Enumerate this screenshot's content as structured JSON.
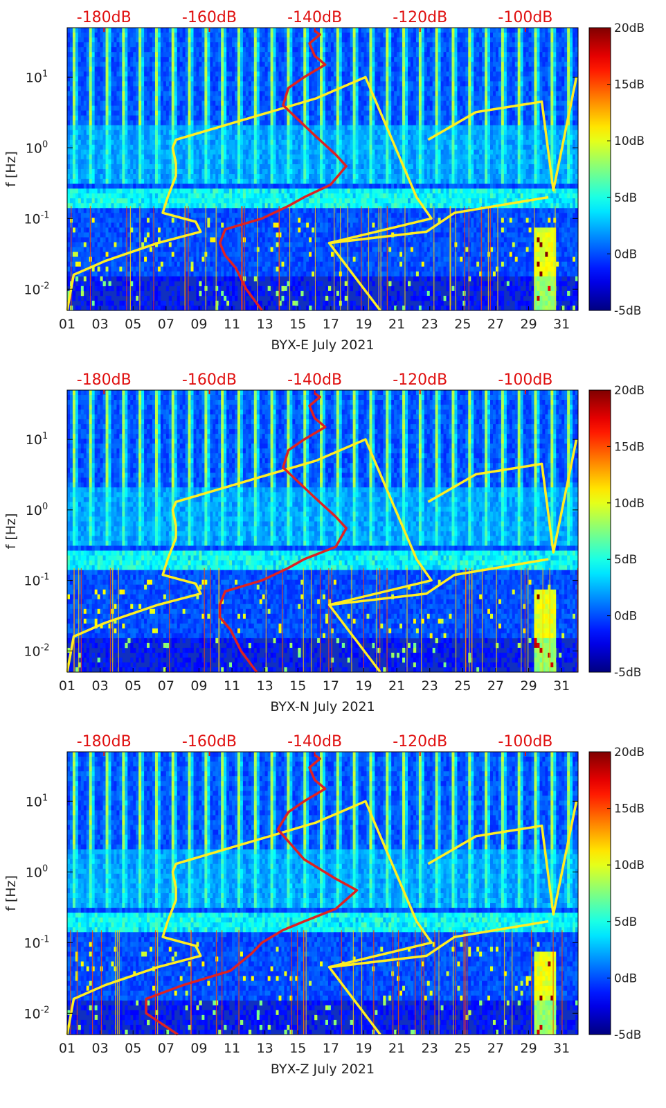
{
  "chart_data": [
    {
      "type": "heatmap",
      "xlabel": "BYX-E July 2021",
      "ylabel": "f [Hz]",
      "xticks": [
        "01",
        "03",
        "05",
        "07",
        "09",
        "11",
        "13",
        "15",
        "17",
        "19",
        "21",
        "23",
        "25",
        "27",
        "29",
        "31"
      ],
      "xlim": [
        1,
        32
      ],
      "yscale": "log",
      "ylim": [
        0.005,
        50
      ],
      "yticks": [
        "10^-2",
        "10^-1",
        "10^0",
        "10^1"
      ],
      "top_axis_ticks": [
        "-180dB",
        "-160dB",
        "-140dB",
        "-120dB",
        "-100dB"
      ],
      "top_axis_range_db": [
        -187,
        -90
      ],
      "colorbar": {
        "ticks": [
          "-5dB",
          "0dB",
          "5dB",
          "10dB",
          "15dB",
          "20dB"
        ],
        "range": [
          -5,
          20
        ],
        "colormap": "jet"
      },
      "daily_pattern": "diurnal high-frequency bursts each day",
      "yellow_curve": {
        "x": [
          1.0,
          1.4,
          3.3,
          6.5,
          9.1,
          8.8,
          6.8,
          7.1,
          7.6,
          7.6,
          7.4,
          7.6,
          16.1,
          19.1,
          22.2,
          23.1,
          16.9,
          20.0
        ],
        "y": [
          0.005,
          0.016,
          0.025,
          0.045,
          0.065,
          0.09,
          0.12,
          0.2,
          0.4,
          0.6,
          1.0,
          1.3,
          5.0,
          10.0,
          0.2,
          0.1,
          0.045,
          0.005
        ],
        "x2": [
          22.9,
          25.8,
          29.8,
          30.5,
          31.9
        ],
        "y2": [
          1.3,
          3.2,
          4.5,
          0.25,
          10.0
        ],
        "x3": [
          16.9,
          22.8,
          24.5,
          30.2
        ],
        "y3": [
          0.045,
          0.065,
          0.12,
          0.2
        ]
      },
      "red_curve": {
        "db": [
          -150,
          -153,
          -155,
          -157,
          -158,
          -157,
          -150,
          -145,
          -142,
          -137,
          -134,
          -136,
          -140,
          -146,
          -145,
          -142,
          -138,
          -140,
          -141,
          -139,
          -140
        ],
        "f": [
          0.005,
          0.01,
          0.02,
          0.03,
          0.045,
          0.07,
          0.1,
          0.15,
          0.2,
          0.3,
          0.55,
          0.8,
          1.5,
          4.0,
          7.0,
          10.0,
          15.0,
          20.0,
          30.0,
          40.0,
          45.0
        ]
      }
    },
    {
      "type": "heatmap",
      "xlabel": "BYX-N July 2021",
      "ylabel": "f [Hz]",
      "xticks": [
        "01",
        "03",
        "05",
        "07",
        "09",
        "11",
        "13",
        "15",
        "17",
        "19",
        "21",
        "23",
        "25",
        "27",
        "29",
        "31"
      ],
      "xlim": [
        1,
        32
      ],
      "yscale": "log",
      "ylim": [
        0.005,
        50
      ],
      "yticks": [
        "10^-2",
        "10^-1",
        "10^0",
        "10^1"
      ],
      "top_axis_ticks": [
        "-180dB",
        "-160dB",
        "-140dB",
        "-120dB",
        "-100dB"
      ],
      "top_axis_range_db": [
        -187,
        -90
      ],
      "colorbar": {
        "ticks": [
          "-5dB",
          "0dB",
          "5dB",
          "10dB",
          "15dB",
          "20dB"
        ],
        "range": [
          -5,
          20
        ],
        "colormap": "jet"
      },
      "daily_pattern": "diurnal high-frequency bursts each day",
      "yellow_curve": {
        "x": [
          1.0,
          1.4,
          3.3,
          6.5,
          9.1,
          8.8,
          6.8,
          7.1,
          7.6,
          7.6,
          7.4,
          7.6,
          16.1,
          19.1,
          22.2,
          23.1,
          16.9,
          20.0
        ],
        "y": [
          0.005,
          0.016,
          0.025,
          0.045,
          0.065,
          0.09,
          0.12,
          0.2,
          0.4,
          0.6,
          1.0,
          1.3,
          5.0,
          10.0,
          0.2,
          0.1,
          0.045,
          0.005
        ],
        "x2": [
          22.9,
          25.8,
          29.8,
          30.5,
          31.9
        ],
        "y2": [
          1.3,
          3.2,
          4.5,
          0.25,
          10.0
        ],
        "x3": [
          16.9,
          22.8,
          24.5,
          30.2
        ],
        "y3": [
          0.045,
          0.065,
          0.12,
          0.2
        ]
      },
      "red_curve": {
        "db": [
          -151,
          -154,
          -156,
          -158,
          -158,
          -157,
          -150,
          -145,
          -142,
          -136,
          -134,
          -136,
          -140,
          -146,
          -145,
          -142,
          -138,
          -140,
          -141,
          -139,
          -140
        ],
        "f": [
          0.005,
          0.01,
          0.02,
          0.03,
          0.045,
          0.07,
          0.1,
          0.15,
          0.2,
          0.3,
          0.55,
          0.8,
          1.5,
          4.0,
          7.0,
          10.0,
          15.0,
          20.0,
          30.0,
          40.0,
          45.0
        ]
      }
    },
    {
      "type": "heatmap",
      "xlabel": "BYX-Z July 2021",
      "ylabel": "f [Hz]",
      "xticks": [
        "01",
        "03",
        "05",
        "07",
        "09",
        "11",
        "13",
        "15",
        "17",
        "19",
        "21",
        "23",
        "25",
        "27",
        "29",
        "31"
      ],
      "xlim": [
        1,
        32
      ],
      "yscale": "log",
      "ylim": [
        0.005,
        50
      ],
      "yticks": [
        "10^-2",
        "10^-1",
        "10^0",
        "10^1"
      ],
      "top_axis_ticks": [
        "-180dB",
        "-160dB",
        "-140dB",
        "-120dB",
        "-100dB"
      ],
      "top_axis_range_db": [
        -187,
        -90
      ],
      "colorbar": {
        "ticks": [
          "-5dB",
          "0dB",
          "5dB",
          "10dB",
          "15dB",
          "20dB"
        ],
        "range": [
          -5,
          20
        ],
        "colormap": "jet"
      },
      "daily_pattern": "diurnal high-frequency bursts each day",
      "yellow_curve": {
        "x": [
          1.0,
          1.4,
          3.3,
          6.5,
          9.1,
          8.8,
          6.8,
          7.1,
          7.6,
          7.6,
          7.4,
          7.6,
          16.1,
          19.1,
          22.2,
          23.1,
          16.9,
          20.0
        ],
        "y": [
          0.005,
          0.016,
          0.025,
          0.045,
          0.065,
          0.09,
          0.12,
          0.2,
          0.4,
          0.6,
          1.0,
          1.3,
          5.0,
          10.0,
          0.2,
          0.1,
          0.045,
          0.005
        ],
        "x2": [
          22.9,
          25.8,
          29.8,
          30.5,
          31.9
        ],
        "y2": [
          1.3,
          3.2,
          4.5,
          0.25,
          10.0
        ],
        "x3": [
          16.9,
          22.8,
          24.5,
          30.2
        ],
        "y3": [
          0.045,
          0.065,
          0.12,
          0.2
        ]
      },
      "red_curve": {
        "db": [
          -166,
          -172,
          -172,
          -165,
          -156,
          -152,
          -150,
          -146,
          -142,
          -136,
          -132,
          -136,
          -142,
          -147,
          -145,
          -142,
          -138,
          -140,
          -141,
          -139,
          -140
        ],
        "f": [
          0.005,
          0.01,
          0.016,
          0.025,
          0.04,
          0.07,
          0.1,
          0.15,
          0.2,
          0.3,
          0.55,
          0.8,
          1.5,
          4.0,
          7.0,
          10.0,
          15.0,
          20.0,
          30.0,
          40.0,
          45.0
        ]
      }
    }
  ],
  "colors": {
    "yellow_curve": "#ffee22",
    "red_curve": "#dd2222",
    "top_axis_text": "#e01010"
  }
}
